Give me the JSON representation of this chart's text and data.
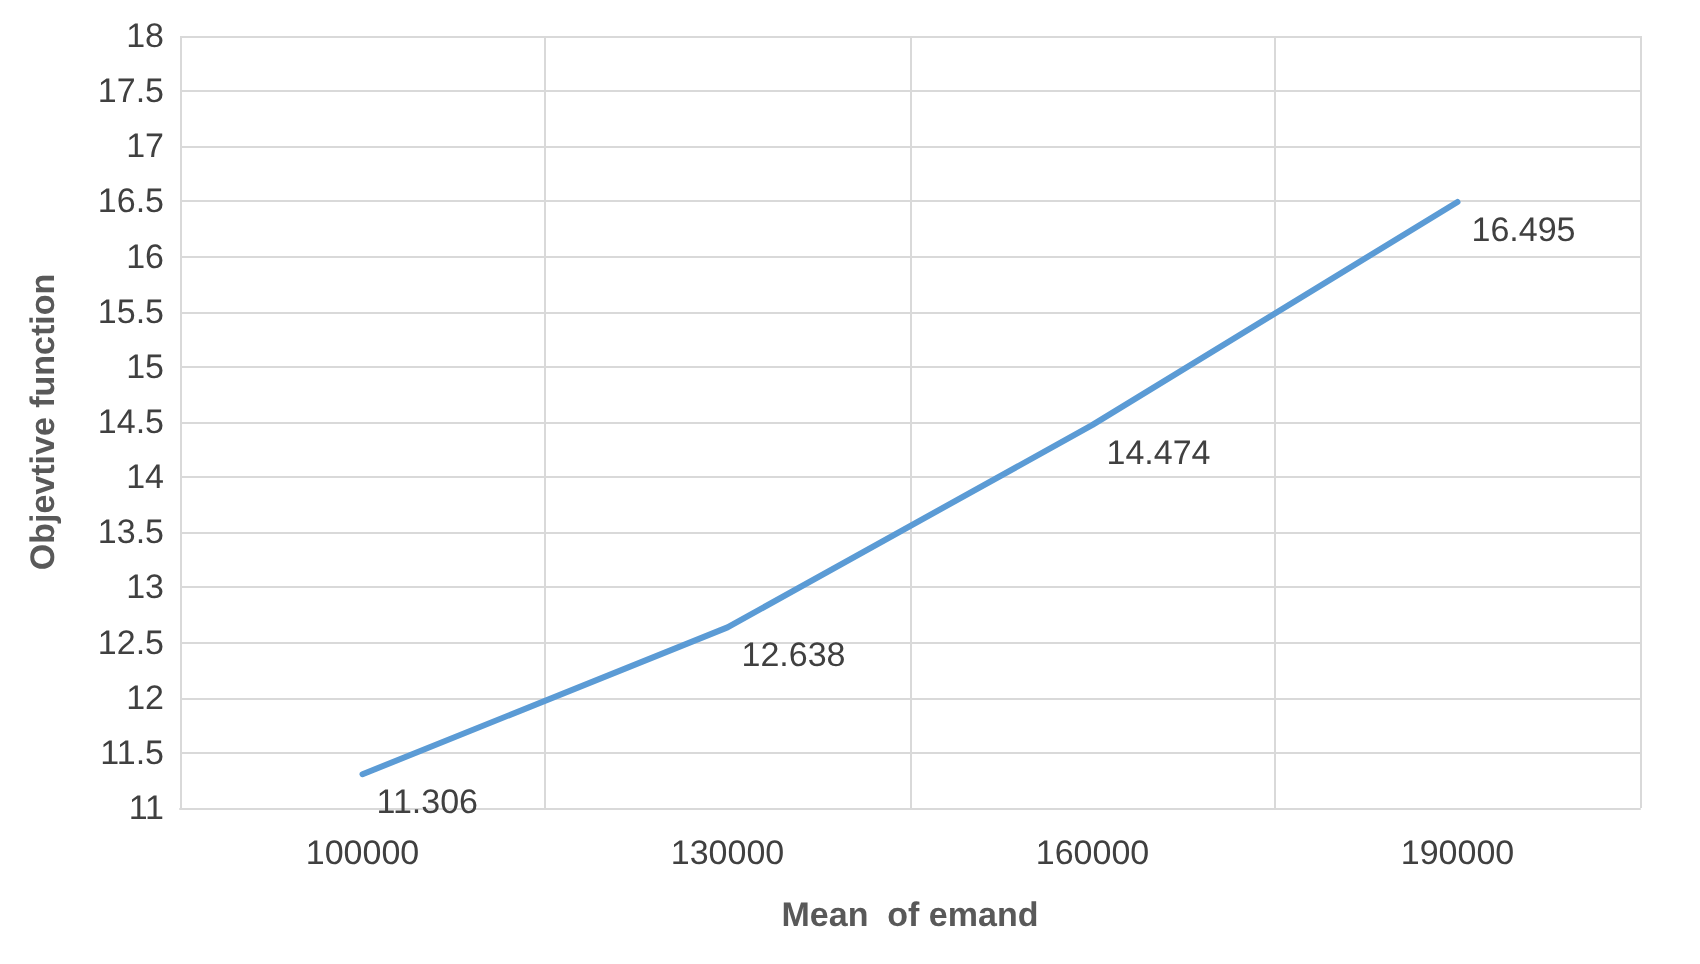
{
  "chart_data": {
    "type": "line",
    "xlabel": "Mean  of emand",
    "ylabel": "Objevtive function",
    "categories": [
      "100000",
      "130000",
      "160000",
      "190000"
    ],
    "series": [
      {
        "color": "#5b9bd5",
        "values": [
          11.306,
          12.638,
          14.474,
          16.495
        ]
      }
    ],
    "ylim": [
      11,
      18
    ],
    "yticks": [
      11,
      11.5,
      12,
      12.5,
      13,
      13.5,
      14,
      14.5,
      15,
      15.5,
      16,
      16.5,
      17,
      17.5,
      18
    ],
    "grid": true,
    "marker": "none",
    "line_style": "solid",
    "data_labels": true
  }
}
